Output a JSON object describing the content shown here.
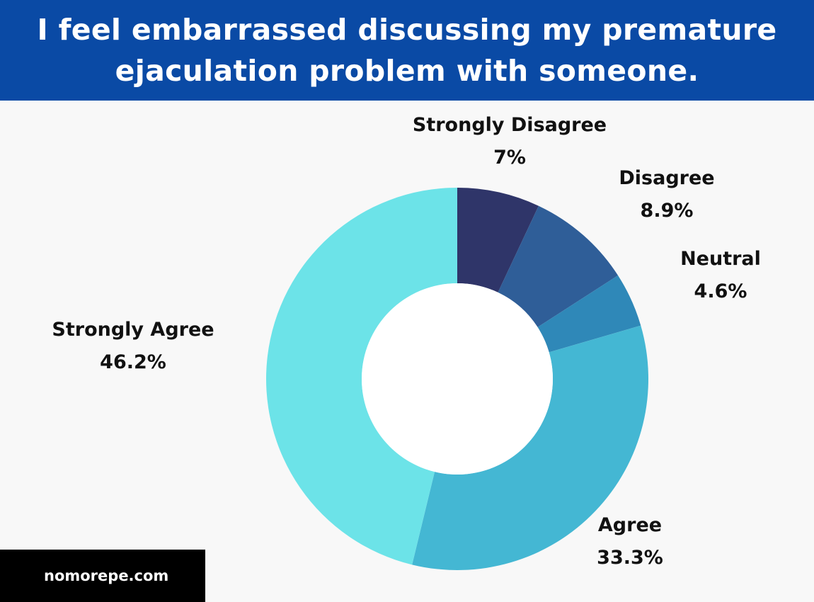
{
  "header": {
    "title": "I feel embarrassed discussing my premature ejaculation problem with someone."
  },
  "footer": {
    "site": "nomorepe.com"
  },
  "colors": {
    "header_bg": "#0a4aa5",
    "background": "#f8f8f8",
    "footer_bg": "#000000"
  },
  "chart_data": {
    "type": "pie",
    "donut": true,
    "title": "I feel embarrassed discussing my premature ejaculation problem with someone.",
    "slices": [
      {
        "label": "Strongly Disagree",
        "value": 7.0,
        "value_label": "7%",
        "color": "#2f3569"
      },
      {
        "label": "Disagree",
        "value": 8.9,
        "value_label": "8.9%",
        "color": "#2f5e98"
      },
      {
        "label": "Neutral",
        "value": 4.6,
        "value_label": "4.6%",
        "color": "#2f88b8"
      },
      {
        "label": "Agree",
        "value": 33.3,
        "value_label": "33.3%",
        "color": "#44b7d3"
      },
      {
        "label": "Strongly Agree",
        "value": 46.2,
        "value_label": "46.2%",
        "color": "#6ce3e8"
      }
    ],
    "start": "top",
    "direction": "clockwise"
  }
}
